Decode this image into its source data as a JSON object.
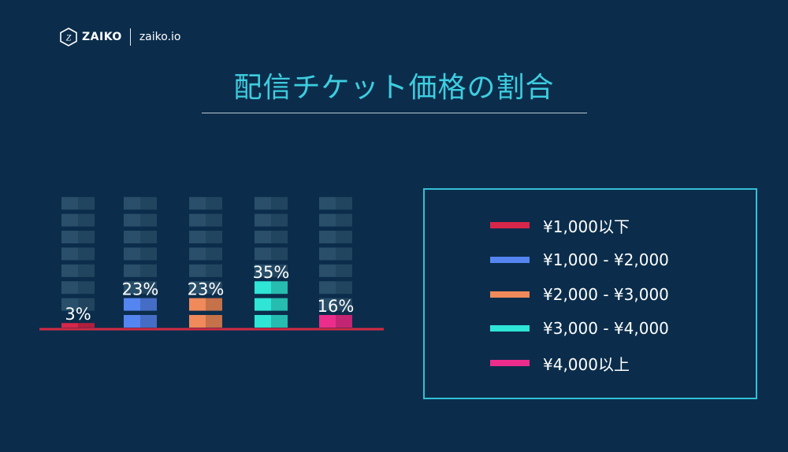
{
  "brand": {
    "logo_letter": "Z",
    "name": "ZAIKO",
    "domain": "zaiko.io"
  },
  "colors": {
    "background": "#0b2d4b",
    "title": "#3ecde0",
    "legend_border": "#33bfd6",
    "baseline": "#d42a44",
    "empty_block": "#294f6a"
  },
  "chart_data": {
    "type": "bar",
    "title": "配信チケット価格の割合",
    "categories": [
      "¥1,000以下",
      "¥1,000 - ¥2,000",
      "¥2,000 - ¥3,000",
      "¥3,000 - ¥4,000",
      "¥4,000以上"
    ],
    "values": [
      3,
      23,
      23,
      35,
      16
    ],
    "value_labels": [
      "3%",
      "23%",
      "23%",
      "35%",
      "16%"
    ],
    "colors": [
      "#d8264a",
      "#5585f0",
      "#f08a5a",
      "#2ee5d6",
      "#ec2d8c"
    ],
    "unit": "%",
    "ylim": [
      0,
      100
    ],
    "grid": false,
    "legend_position": "right"
  }
}
